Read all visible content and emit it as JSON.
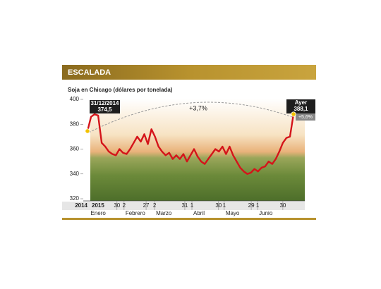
{
  "chart_data": {
    "type": "line",
    "title": "ESCALADA",
    "subtitle": "Soja en Chicago (dólares por tonelada)",
    "series": [
      {
        "color": "#d4141a",
        "values": [
          374.5,
          386,
          388,
          387,
          365,
          362,
          358,
          356,
          355,
          360,
          357,
          356,
          360,
          365,
          370,
          366,
          372,
          364,
          376,
          370,
          362,
          358,
          355,
          357,
          352,
          355,
          352,
          356,
          350,
          355,
          360,
          354,
          350,
          348,
          352,
          356,
          360,
          358,
          362,
          356,
          362,
          355,
          350,
          345,
          342,
          340,
          341,
          344,
          342,
          345,
          346,
          350,
          348,
          352,
          358,
          365,
          369,
          370,
          388.1
        ],
        "value_labels": [
          "374,5",
          null,
          null,
          null,
          null,
          null,
          null,
          null,
          null,
          null,
          null,
          null,
          null,
          null,
          null,
          null,
          null,
          null,
          null,
          null,
          null,
          null,
          null,
          null,
          null,
          null,
          null,
          null,
          null,
          null,
          null,
          null,
          null,
          null,
          null,
          null,
          null,
          null,
          null,
          null,
          null,
          null,
          null,
          null,
          null,
          null,
          null,
          null,
          null,
          null,
          null,
          null,
          null,
          null,
          null,
          null,
          null,
          null,
          "388,1"
        ]
      }
    ],
    "xlim": [
      0,
      58
    ],
    "xticks": [
      {
        "value": 8.3,
        "label": "30"
      },
      {
        "value": 10.3,
        "label": "2"
      },
      {
        "value": 16.5,
        "label": "27"
      },
      {
        "value": 18.9,
        "label": "2"
      },
      {
        "value": 27.4,
        "label": "31"
      },
      {
        "value": 29.4,
        "label": "1"
      },
      {
        "value": 36.9,
        "label": "30"
      },
      {
        "value": 38.5,
        "label": "1"
      },
      {
        "value": 46.1,
        "label": "29"
      },
      {
        "value": 47.9,
        "label": "1"
      },
      {
        "value": 55,
        "label": "30"
      }
    ],
    "month_labels": [
      {
        "value": 0.5,
        "label": "Enero"
      },
      {
        "value": 10.3,
        "label": "Febrero"
      },
      {
        "value": 18.9,
        "label": "Marzo"
      },
      {
        "value": 29.4,
        "label": "Abril"
      },
      {
        "value": 38.5,
        "label": "Mayo"
      },
      {
        "value": 47.9,
        "label": "Junio"
      }
    ],
    "year_labels": [
      "2014",
      "2015"
    ],
    "ylim": [
      320,
      400
    ],
    "yticks": [
      320,
      340,
      360,
      380,
      400
    ],
    "annotations": [
      "31/12/2014",
      "Ayer",
      "+3,7%",
      "+5,6%"
    ]
  }
}
